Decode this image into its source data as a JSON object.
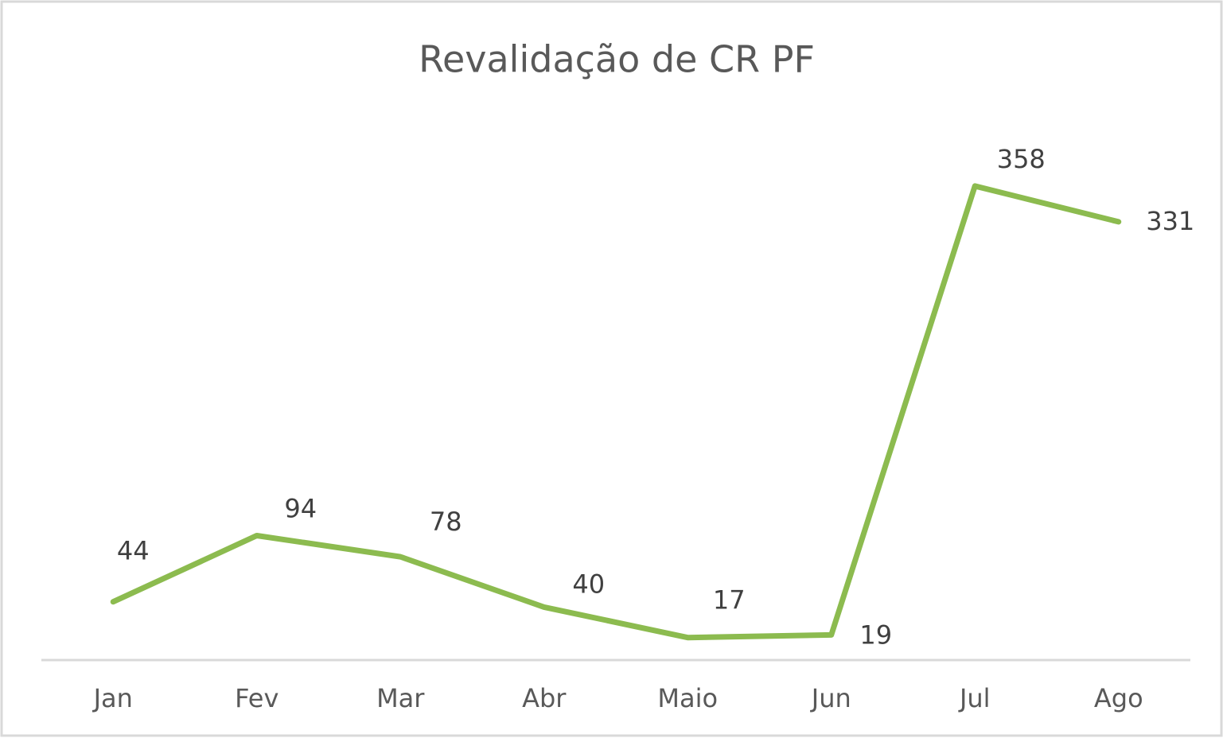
{
  "chart_data": {
    "type": "line",
    "title": "Revalidação de CR PF",
    "categories": [
      "Jan",
      "Fev",
      "Mar",
      "Abr",
      "Maio",
      "Jun",
      "Jul",
      "Ago"
    ],
    "series": [
      {
        "name": "Revalidação de CR PF",
        "color": "#8cbb4f",
        "values": [
          44,
          94,
          78,
          40,
          17,
          19,
          358,
          331
        ]
      }
    ],
    "ylim": [
      0,
      400
    ],
    "data_labels": true
  }
}
